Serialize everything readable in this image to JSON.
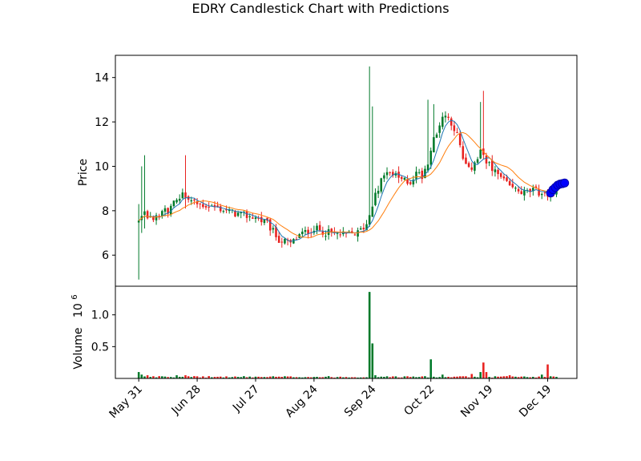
{
  "chart_data": {
    "type": "candlestick",
    "title": "EDRY Candlestick Chart with Predictions",
    "price_panel": {
      "ylabel": "Price",
      "ylim": [
        4.6,
        15.0
      ],
      "yticks": [
        6,
        8,
        10,
        12,
        14
      ],
      "series": [
        "candles",
        "moving-average-short",
        "moving-average-long",
        "predictions"
      ]
    },
    "volume_panel": {
      "ylabel": "Volume",
      "ylabel_exponent": "10^6",
      "ylabel_base": "10",
      "ylabel_power": "6",
      "ylim": [
        0,
        1.45
      ],
      "yticks": [
        0.5,
        1.0
      ],
      "ytick_labels": [
        "0.5",
        "1.0"
      ]
    },
    "x_ticks": [
      "May 31",
      "Jun 28",
      "Jul 27",
      "Aug 24",
      "Sep 24",
      "Oct 22",
      "Nov 19",
      "Dec 19"
    ],
    "x_tick_index": [
      0,
      20,
      40,
      60,
      80,
      100,
      120,
      140
    ],
    "x_range": [
      -8,
      150
    ],
    "colors": {
      "up": "#007a2a",
      "down": "#e8211f",
      "ma_short": "#1f77b4",
      "ma_long": "#ff7f0e",
      "prediction": "#0000ff"
    },
    "knots": [
      [
        0,
        7.5
      ],
      [
        2,
        7.9
      ],
      [
        5,
        7.5
      ],
      [
        8,
        8.0
      ],
      [
        10,
        8.0
      ],
      [
        12,
        8.3
      ],
      [
        15,
        8.7
      ],
      [
        17,
        8.5
      ],
      [
        20,
        8.3
      ],
      [
        25,
        8.2
      ],
      [
        30,
        8.0
      ],
      [
        35,
        7.8
      ],
      [
        40,
        7.7
      ],
      [
        44,
        7.4
      ],
      [
        48,
        6.7
      ],
      [
        52,
        6.5
      ],
      [
        55,
        6.9
      ],
      [
        60,
        7.2
      ],
      [
        65,
        7.0
      ],
      [
        70,
        6.9
      ],
      [
        75,
        7.0
      ],
      [
        78,
        7.4
      ],
      [
        81,
        8.8
      ],
      [
        83,
        9.3
      ],
      [
        85,
        9.9
      ],
      [
        87,
        9.6
      ],
      [
        90,
        9.4
      ],
      [
        93,
        9.3
      ],
      [
        95,
        9.7
      ],
      [
        97,
        9.6
      ],
      [
        99,
        10.2
      ],
      [
        101,
        11.3
      ],
      [
        103,
        11.9
      ],
      [
        105,
        12.3
      ],
      [
        107,
        12.0
      ],
      [
        109,
        11.4
      ],
      [
        111,
        10.3
      ],
      [
        113,
        9.8
      ],
      [
        115,
        10.1
      ],
      [
        117,
        10.6
      ],
      [
        119,
        10.3
      ],
      [
        121,
        9.8
      ],
      [
        123,
        9.6
      ],
      [
        125,
        9.3
      ],
      [
        128,
        9.0
      ],
      [
        132,
        8.8
      ],
      [
        135,
        8.9
      ],
      [
        138,
        8.8
      ],
      [
        141,
        8.7
      ],
      [
        143,
        8.75
      ]
    ],
    "spikes": [
      {
        "i": 0,
        "high": 8.3,
        "low": 4.9
      },
      {
        "i": 1,
        "high": 10.0,
        "low": 7.0
      },
      {
        "i": 2,
        "high": 10.5,
        "low": 7.2
      },
      {
        "i": 16,
        "high": 10.5,
        "low": 8.1
      },
      {
        "i": 79,
        "high": 14.5,
        "low": 7.6
      },
      {
        "i": 80,
        "high": 12.7,
        "low": 8.5
      },
      {
        "i": 99,
        "high": 13.0,
        "low": 9.8
      },
      {
        "i": 101,
        "high": 12.8,
        "low": 11.0
      },
      {
        "i": 117,
        "high": 12.9,
        "low": 10.5
      },
      {
        "i": 118,
        "high": 13.4,
        "low": 10.8
      }
    ],
    "volume_spikes": [
      {
        "i": 0,
        "v": 0.1
      },
      {
        "i": 1,
        "v": 0.06
      },
      {
        "i": 3,
        "v": 0.05
      },
      {
        "i": 13,
        "v": 0.05
      },
      {
        "i": 16,
        "v": 0.05
      },
      {
        "i": 79,
        "v": 1.36
      },
      {
        "i": 80,
        "v": 0.55
      },
      {
        "i": 81,
        "v": 0.05
      },
      {
        "i": 100,
        "v": 0.3
      },
      {
        "i": 104,
        "v": 0.06
      },
      {
        "i": 114,
        "v": 0.07
      },
      {
        "i": 117,
        "v": 0.1
      },
      {
        "i": 118,
        "v": 0.25
      },
      {
        "i": 119,
        "v": 0.1
      },
      {
        "i": 127,
        "v": 0.05
      },
      {
        "i": 138,
        "v": 0.06
      },
      {
        "i": 140,
        "v": 0.22
      }
    ],
    "predictions": [
      {
        "i": 141,
        "y": 8.8
      },
      {
        "i": 141.8,
        "y": 8.95
      },
      {
        "i": 142.6,
        "y": 9.05
      },
      {
        "i": 143.4,
        "y": 9.15
      },
      {
        "i": 144.2,
        "y": 9.2
      },
      {
        "i": 145,
        "y": 9.22
      },
      {
        "i": 145.8,
        "y": 9.25
      }
    ]
  }
}
